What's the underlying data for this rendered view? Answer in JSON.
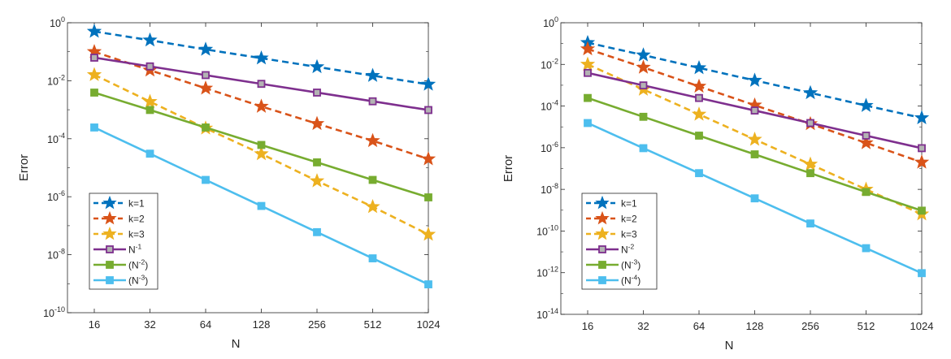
{
  "chart_data": [
    {
      "type": "line",
      "xscale": "log2",
      "yscale": "log10",
      "xlabel": "N",
      "ylabel": "Error",
      "x": [
        16,
        32,
        64,
        128,
        256,
        512,
        1024
      ],
      "xticks": [
        "16",
        "32",
        "64",
        "128",
        "256",
        "512",
        "1024"
      ],
      "yticks": [
        {
          "base": "10",
          "exp": "0"
        },
        {
          "base": "10",
          "exp": "-2"
        },
        {
          "base": "10",
          "exp": "-4"
        },
        {
          "base": "10",
          "exp": "-6"
        },
        {
          "base": "10",
          "exp": "-8"
        },
        {
          "base": "10",
          "exp": "-10"
        }
      ],
      "ylim_exp": [
        -10,
        0
      ],
      "legend_position": "bottom-left",
      "series": [
        {
          "name": "k=1",
          "label": [
            {
              "t": "k=1"
            }
          ],
          "style": "dashed",
          "marker": "star",
          "color": "#0072BD",
          "marker_face": "#0072BD",
          "values": [
            0.5,
            0.25,
            0.12,
            0.06,
            0.03,
            0.015,
            0.0075
          ]
        },
        {
          "name": "k=2",
          "label": [
            {
              "t": "k=2"
            }
          ],
          "style": "dashed",
          "marker": "star",
          "color": "#D95319",
          "marker_face": "#D95319",
          "values": [
            0.1,
            0.023,
            0.0055,
            0.0013,
            0.00033,
            8.5e-05,
            2e-05
          ]
        },
        {
          "name": "k=3",
          "label": [
            {
              "t": "k=3"
            }
          ],
          "style": "dashed",
          "marker": "star",
          "color": "#EDB120",
          "marker_face": "#EDB120",
          "values": [
            0.016,
            0.0019,
            0.00023,
            3e-05,
            3.5e-06,
            4.5e-07,
            5e-08
          ]
        },
        {
          "name": "N^-1",
          "label": [
            {
              "t": "N"
            },
            {
              "t": "-1",
              "sup": true
            }
          ],
          "style": "solid",
          "marker": "square",
          "color": "#7E2F8E",
          "marker_face": "#B3B3B3",
          "values": [
            0.0625,
            0.03125,
            0.015625,
            0.0078125,
            0.00390625,
            0.001953125,
            0.0009765625
          ]
        },
        {
          "name": "(N^-2)",
          "label": [
            {
              "t": "(N"
            },
            {
              "t": "-2",
              "sup": true
            },
            {
              "t": ")"
            }
          ],
          "style": "solid",
          "marker": "square",
          "color": "#77AC30",
          "marker_face": "#77AC30",
          "values": [
            0.0039,
            0.00098,
            0.000244,
            6.1e-05,
            1.53e-05,
            3.8e-06,
            9.5e-07
          ]
        },
        {
          "name": "(N^-3)",
          "label": [
            {
              "t": "(N"
            },
            {
              "t": "-3",
              "sup": true
            },
            {
              "t": ")"
            }
          ],
          "style": "solid",
          "marker": "square",
          "color": "#4DBEEE",
          "marker_face": "#4DBEEE",
          "values": [
            0.000244,
            3.05e-05,
            3.8e-06,
            4.8e-07,
            6e-08,
            7.5e-09,
            9.5e-10
          ]
        }
      ]
    },
    {
      "type": "line",
      "xscale": "log2",
      "yscale": "log10",
      "xlabel": "N",
      "ylabel": "Error",
      "x": [
        16,
        32,
        64,
        128,
        256,
        512,
        1024
      ],
      "xticks": [
        "16",
        "32",
        "64",
        "128",
        "256",
        "512",
        "1024"
      ],
      "yticks": [
        {
          "base": "10",
          "exp": "0"
        },
        {
          "base": "10",
          "exp": "-2"
        },
        {
          "base": "10",
          "exp": "-4"
        },
        {
          "base": "10",
          "exp": "-6"
        },
        {
          "base": "10",
          "exp": "-8"
        },
        {
          "base": "10",
          "exp": "-10"
        },
        {
          "base": "10",
          "exp": "-12"
        },
        {
          "base": "10",
          "exp": "-14"
        }
      ],
      "ylim_exp": [
        -14,
        0
      ],
      "legend_position": "bottom-left",
      "series": [
        {
          "name": "k=1",
          "label": [
            {
              "t": "k=1"
            }
          ],
          "style": "dashed",
          "marker": "star",
          "color": "#0072BD",
          "marker_face": "#0072BD",
          "values": [
            0.11,
            0.028,
            0.0068,
            0.0017,
            0.00043,
            0.000105,
            2.7e-05
          ]
        },
        {
          "name": "k=2",
          "label": [
            {
              "t": "k=2"
            }
          ],
          "style": "dashed",
          "marker": "star",
          "color": "#D95319",
          "marker_face": "#D95319",
          "values": [
            0.055,
            0.0072,
            0.00088,
            0.00011,
            1.4e-05,
            1.7e-06,
            2e-07
          ]
        },
        {
          "name": "k=3",
          "label": [
            {
              "t": "k=3"
            }
          ],
          "style": "dashed",
          "marker": "star",
          "color": "#EDB120",
          "marker_face": "#EDB120",
          "values": [
            0.01,
            0.00063,
            4e-05,
            2.5e-06,
            1.6e-07,
            1e-08,
            6.5e-10
          ]
        },
        {
          "name": "N^-2",
          "label": [
            {
              "t": "N"
            },
            {
              "t": "-2",
              "sup": true
            }
          ],
          "style": "solid",
          "marker": "square",
          "color": "#7E2F8E",
          "marker_face": "#B3B3B3",
          "values": [
            0.0039,
            0.00098,
            0.000244,
            6.1e-05,
            1.53e-05,
            3.8e-06,
            9.5e-07
          ]
        },
        {
          "name": "(N^-3)",
          "label": [
            {
              "t": "(N"
            },
            {
              "t": "-3",
              "sup": true
            },
            {
              "t": ")"
            }
          ],
          "style": "solid",
          "marker": "square",
          "color": "#77AC30",
          "marker_face": "#77AC30",
          "values": [
            0.000244,
            3.05e-05,
            3.8e-06,
            4.8e-07,
            6e-08,
            7.5e-09,
            9.5e-10
          ]
        },
        {
          "name": "(N^-4)",
          "label": [
            {
              "t": "(N"
            },
            {
              "t": "-4",
              "sup": true
            },
            {
              "t": ")"
            }
          ],
          "style": "solid",
          "marker": "square",
          "color": "#4DBEEE",
          "marker_face": "#4DBEEE",
          "values": [
            1.53e-05,
            9.5e-07,
            6e-08,
            3.7e-09,
            2.3e-10,
            1.5e-11,
            9.5e-13
          ]
        }
      ]
    }
  ]
}
